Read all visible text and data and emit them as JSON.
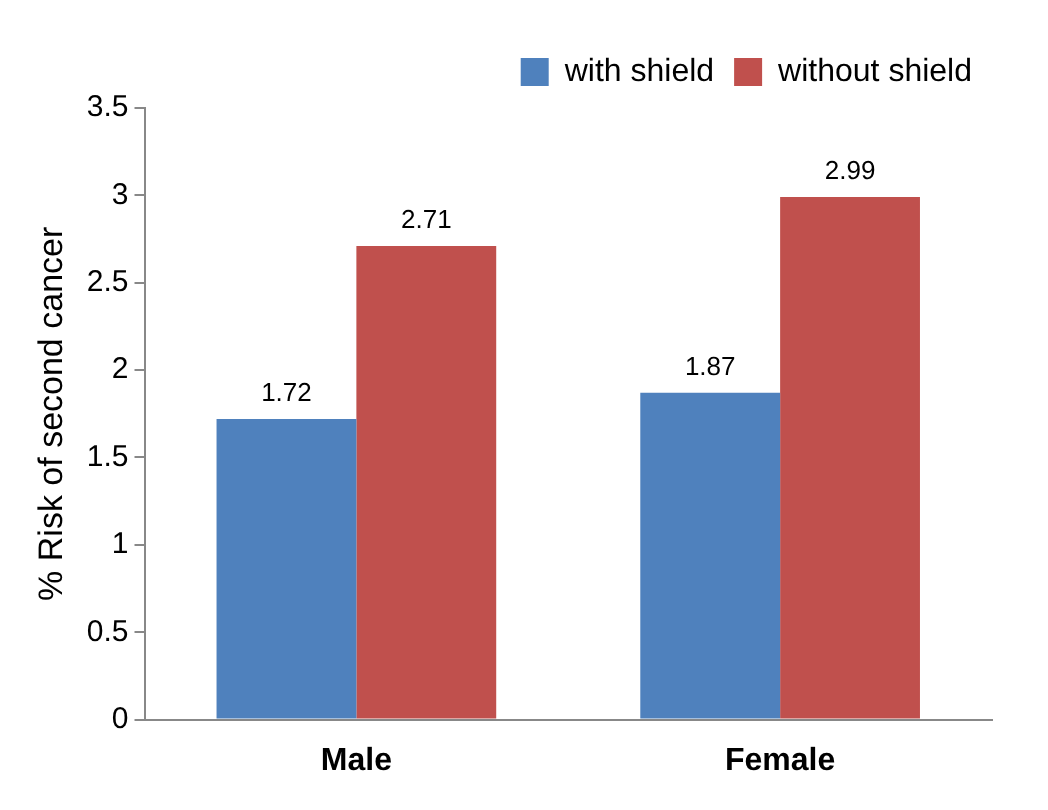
{
  "chart_data": {
    "type": "bar",
    "ylabel": "% Risk of second cancer",
    "categories": [
      "Male",
      "Female"
    ],
    "series": [
      {
        "name": "with shield",
        "color": "#4f81bd",
        "values": [
          1.72,
          1.87
        ]
      },
      {
        "name": "without shield",
        "color": "#c0504d",
        "values": [
          2.71,
          2.99
        ]
      }
    ],
    "ylim": [
      0,
      3.5
    ],
    "yticks": [
      0,
      0.5,
      1,
      1.5,
      2,
      2.5,
      3,
      3.5
    ],
    "grid": false,
    "legend": "top right",
    "data_labels": true
  }
}
